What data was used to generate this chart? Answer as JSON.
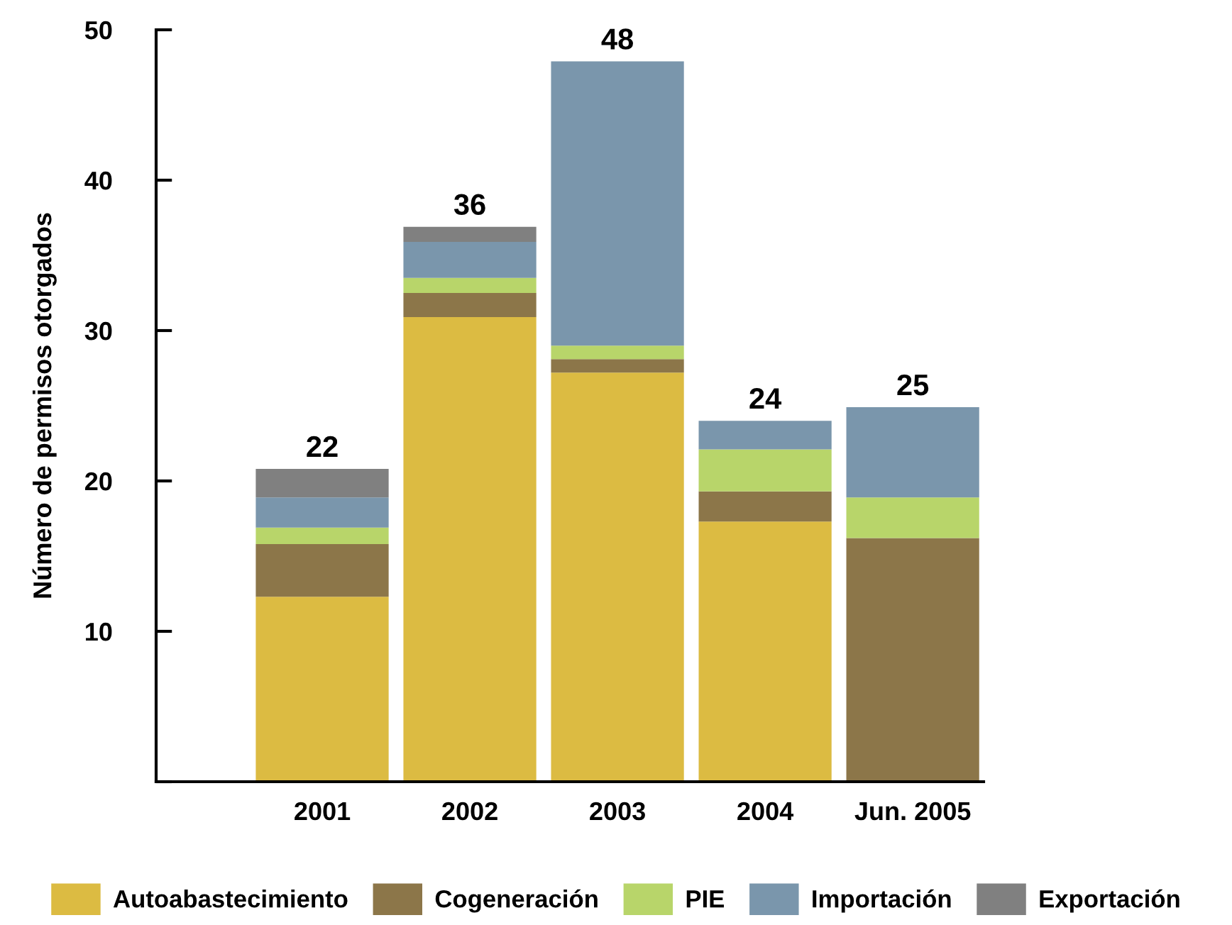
{
  "chart_data": {
    "type": "bar",
    "stacked": true,
    "ylabel": "Número de permisos otorgados",
    "categories": [
      "2001",
      "2002",
      "2003",
      "2004",
      "Jun. 2005"
    ],
    "series": [
      {
        "name": "Autoabastecimiento",
        "color": "#dcbb42",
        "values": [
          12.3,
          30.9,
          27.2,
          17.3,
          0
        ]
      },
      {
        "name": "Cogeneración",
        "color": "#8c7649",
        "values": [
          3.5,
          1.6,
          0.9,
          2.0,
          16.2
        ]
      },
      {
        "name": "PIE",
        "color": "#b8d56a",
        "values": [
          1.1,
          1.0,
          0.9,
          2.8,
          2.7
        ]
      },
      {
        "name": "Importación",
        "color": "#7a96ac",
        "values": [
          2.0,
          2.4,
          18.9,
          1.9,
          6.0
        ]
      },
      {
        "name": "Exportación",
        "color": "#808080",
        "values": [
          1.9,
          1.0,
          0,
          0,
          0
        ]
      }
    ],
    "totals": [
      "22",
      "36",
      "48",
      "24",
      "25"
    ],
    "ylim": [
      0,
      50
    ],
    "yticks": [
      {
        "value": 0,
        "label": null
      },
      10,
      20,
      30,
      40,
      50
    ],
    "grid": false,
    "legend": "bottom"
  }
}
